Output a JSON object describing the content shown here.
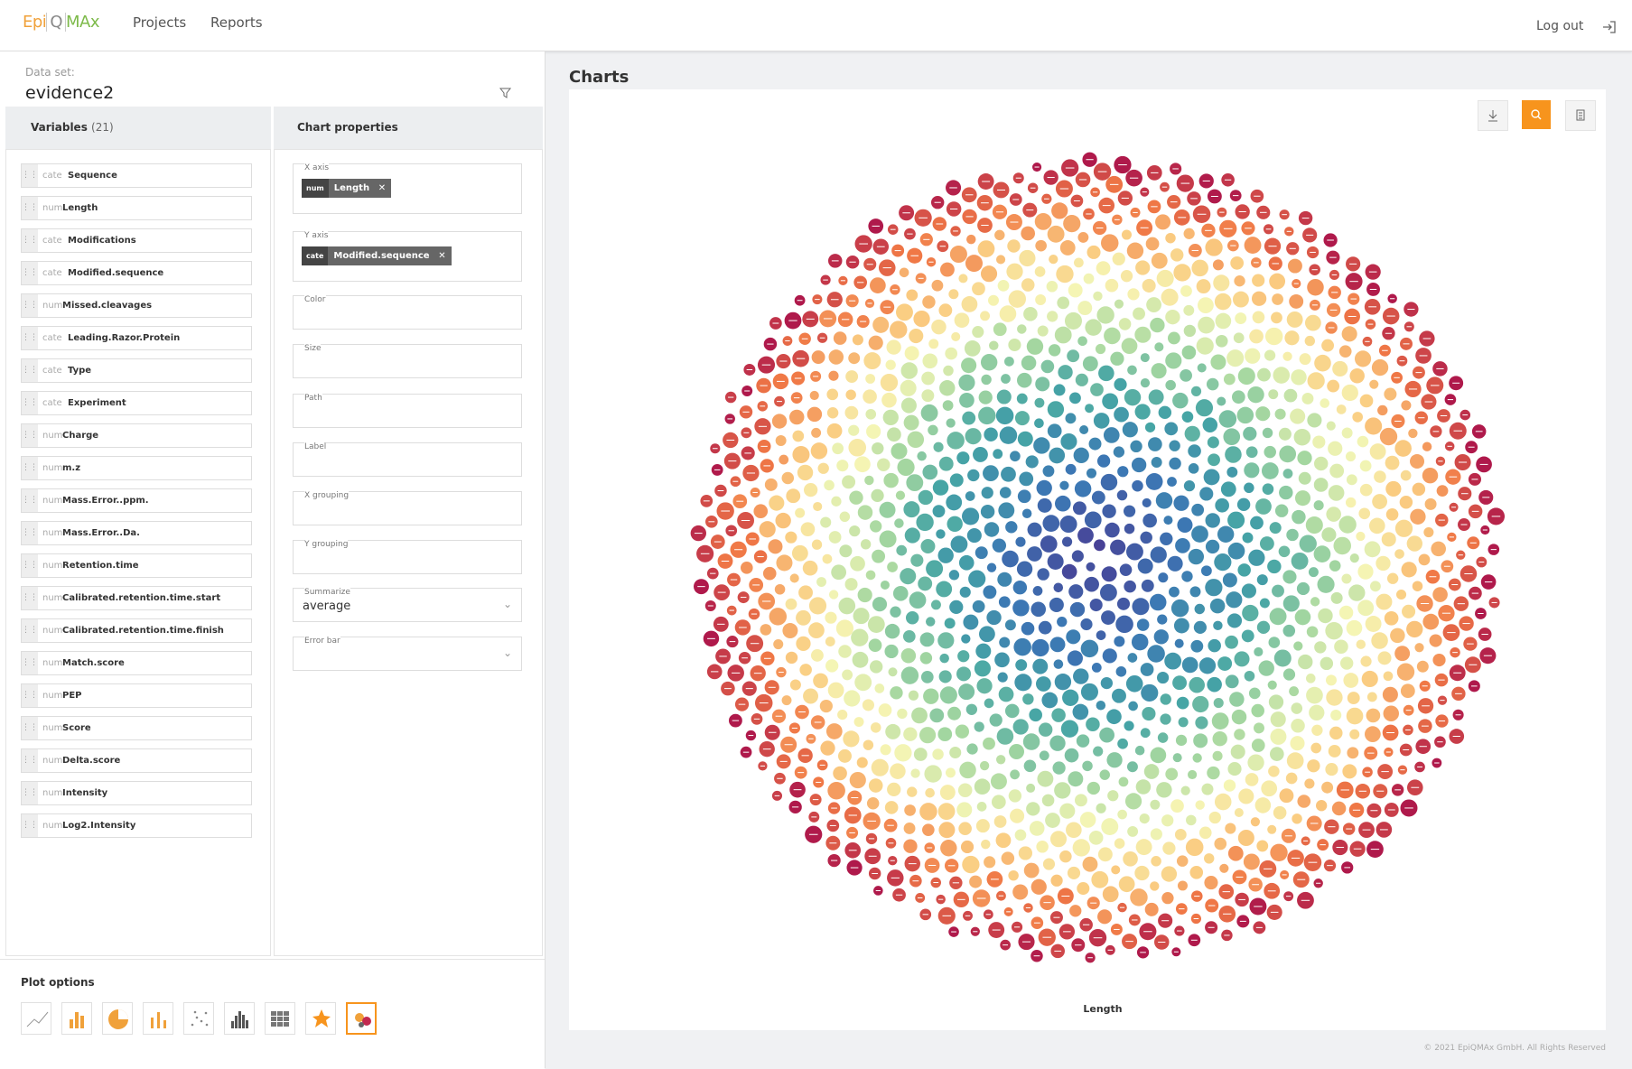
{
  "nav": {
    "logo": [
      "Epi",
      "Q",
      "MAx"
    ],
    "links": [
      "Projects",
      "Reports"
    ],
    "logout": "Log out"
  },
  "dataset": {
    "label": "Data set:",
    "name": "evidence2"
  },
  "variables": {
    "title": "Variables",
    "count": "(21)",
    "items": [
      {
        "type": "cate",
        "name": "Sequence"
      },
      {
        "type": "num",
        "name": "Length"
      },
      {
        "type": "cate",
        "name": "Modifications"
      },
      {
        "type": "cate",
        "name": "Modified.sequence"
      },
      {
        "type": "num",
        "name": "Missed.cleavages"
      },
      {
        "type": "cate",
        "name": "Leading.Razor.Protein"
      },
      {
        "type": "cate",
        "name": "Type"
      },
      {
        "type": "cate",
        "name": "Experiment"
      },
      {
        "type": "num",
        "name": "Charge"
      },
      {
        "type": "num",
        "name": "m.z"
      },
      {
        "type": "num",
        "name": "Mass.Error..ppm."
      },
      {
        "type": "num",
        "name": "Mass.Error..Da."
      },
      {
        "type": "num",
        "name": "Retention.time"
      },
      {
        "type": "num",
        "name": "Calibrated.retention.time.start"
      },
      {
        "type": "num",
        "name": "Calibrated.retention.time.finish"
      },
      {
        "type": "num",
        "name": "Match.score"
      },
      {
        "type": "num",
        "name": "PEP"
      },
      {
        "type": "num",
        "name": "Score"
      },
      {
        "type": "num",
        "name": "Delta.score"
      },
      {
        "type": "num",
        "name": "Intensity"
      },
      {
        "type": "num",
        "name": "Log2.Intensity"
      }
    ]
  },
  "chart_properties": {
    "title": "Chart properties",
    "fields": [
      {
        "label": "X axis",
        "chip": {
          "type": "num",
          "name": "Length"
        }
      },
      {
        "label": "Y axis",
        "chip": {
          "type": "cate",
          "name": "Modified.sequence"
        }
      },
      {
        "label": "Color"
      },
      {
        "label": "Size"
      },
      {
        "label": "Path"
      },
      {
        "label": "Label"
      },
      {
        "label": "X grouping"
      },
      {
        "label": "Y grouping"
      },
      {
        "label": "Summarize",
        "value": "average"
      },
      {
        "label": "Error bar"
      }
    ]
  },
  "plot_options": {
    "title": "Plot options"
  },
  "charts": {
    "title": "Charts",
    "x_label": "Length"
  },
  "footer": "© 2021 EpiQMAx GmbH. All Rights Reserved"
}
